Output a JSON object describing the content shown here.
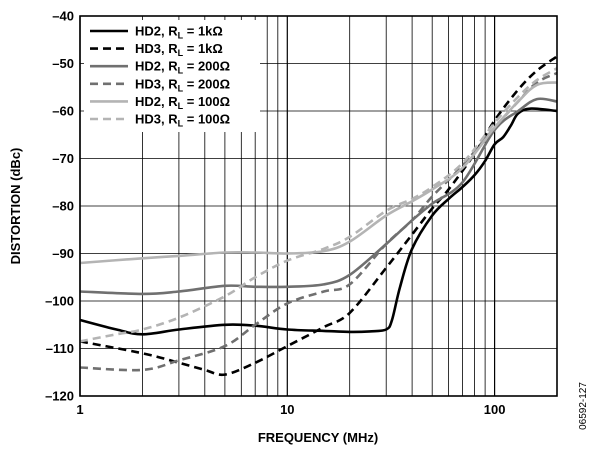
{
  "chart_data": {
    "type": "line",
    "title": "",
    "xlabel": "FREQUENCY (MHz)",
    "ylabel": "DISTORTION (dBc)",
    "xscale": "log",
    "xlim": [
      1,
      200
    ],
    "ylim": [
      -120,
      -40
    ],
    "x_ticks": [
      1,
      10,
      100
    ],
    "x_tick_labels": [
      "1",
      "10",
      "100"
    ],
    "y_ticks": [
      -120,
      -110,
      -100,
      -90,
      -80,
      -70,
      -60,
      -50,
      -40
    ],
    "y_tick_labels": [
      "–120",
      "–110",
      "–100",
      "–90",
      "–80",
      "–70",
      "–60",
      "–50",
      "–40"
    ],
    "grid": true,
    "legend_position": "top-left",
    "figure_id": "06592-127",
    "series": [
      {
        "label_main": "HD2, R",
        "label_sub": "L",
        "label_tail": " = 1kΩ",
        "color": "#000000",
        "dash": "solid",
        "x": [
          1,
          1.5,
          2,
          3,
          5,
          7,
          10,
          15,
          20,
          25,
          30,
          32,
          35,
          40,
          50,
          60,
          70,
          80,
          90,
          100,
          110,
          120,
          130,
          150,
          200
        ],
        "y": [
          -104,
          -106,
          -107,
          -106,
          -105,
          -105.2,
          -106,
          -106.3,
          -106.5,
          -106.4,
          -106,
          -104,
          -97,
          -89,
          -82,
          -78.5,
          -76,
          -73.5,
          -70.5,
          -67,
          -65.5,
          -63,
          -60.5,
          -59.5,
          -60
        ]
      },
      {
        "label_main": "HD3, R",
        "label_sub": "L",
        "label_tail": " = 1kΩ",
        "color": "#000000",
        "dash": "dashed",
        "x": [
          1,
          2,
          3,
          4,
          5,
          7,
          10,
          15,
          20,
          30,
          40,
          50,
          60,
          80,
          100,
          130,
          160,
          200
        ],
        "y": [
          -108.5,
          -111,
          -113,
          -114.5,
          -115.5,
          -113,
          -109.5,
          -105.5,
          -102.5,
          -93,
          -86,
          -80.5,
          -76.5,
          -69,
          -62,
          -55.5,
          -51.5,
          -48.5
        ]
      },
      {
        "label_main": "HD2, R",
        "label_sub": "L",
        "label_tail": " = 200Ω",
        "color": "#707070",
        "dash": "solid",
        "x": [
          1,
          2,
          3,
          5,
          7,
          10,
          15,
          20,
          30,
          40,
          50,
          70,
          100,
          130,
          160,
          200
        ],
        "y": [
          -98,
          -98.5,
          -98,
          -96.8,
          -97,
          -97,
          -96.5,
          -94.5,
          -88,
          -83,
          -79.5,
          -75,
          -64,
          -60,
          -57.5,
          -58
        ]
      },
      {
        "label_main": "HD3, R",
        "label_sub": "L",
        "label_tail": " = 200Ω",
        "color": "#707070",
        "dash": "dashed",
        "x": [
          1,
          2,
          3,
          5,
          7,
          10,
          15,
          20,
          30,
          40,
          50,
          70,
          100,
          130,
          160,
          200
        ],
        "y": [
          -114,
          -114.5,
          -112.5,
          -109.5,
          -105,
          -100.5,
          -98,
          -96.5,
          -88,
          -83,
          -78,
          -71.5,
          -63.5,
          -58,
          -54,
          -52
        ]
      },
      {
        "label_main": "HD2, R",
        "label_sub": "L",
        "label_tail": " = 100Ω",
        "color": "#b4b4b4",
        "dash": "solid",
        "x": [
          1,
          2,
          3,
          5,
          7,
          10,
          15,
          20,
          30,
          40,
          50,
          70,
          100,
          130,
          160,
          200
        ],
        "y": [
          -92,
          -91,
          -90.5,
          -89.8,
          -89.8,
          -90,
          -89.5,
          -87.5,
          -82,
          -79,
          -76.5,
          -72,
          -63.5,
          -58,
          -54.5,
          -54
        ]
      },
      {
        "label_main": "HD3, R",
        "label_sub": "L",
        "label_tail": " = 100Ω",
        "color": "#b4b4b4",
        "dash": "dashed",
        "x": [
          1,
          1.5,
          2,
          3,
          5,
          7,
          10,
          15,
          20,
          30,
          40,
          50,
          70,
          100,
          130,
          160,
          200
        ],
        "y": [
          -108.5,
          -107,
          -106,
          -103.5,
          -99,
          -95,
          -91.5,
          -89,
          -86.5,
          -81,
          -78.5,
          -76,
          -71,
          -62.5,
          -57,
          -53.5,
          -51
        ]
      }
    ]
  }
}
